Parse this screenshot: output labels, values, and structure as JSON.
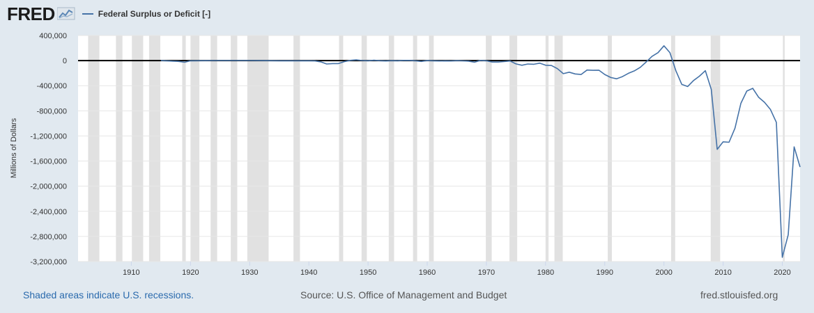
{
  "header": {
    "logo_text": "FRED",
    "logo_icon": "chart-line-icon",
    "legend_label": "Federal Surplus or Deficit [-]",
    "series_color": "#4572a7"
  },
  "footer": {
    "recessions_note": "Shaded areas indicate U.S. recessions.",
    "source": "Source: U.S. Office of Management and Budget",
    "site": "fred.stlouisfed.org"
  },
  "chart_data": {
    "type": "line",
    "title": "",
    "xlabel": "",
    "ylabel": "Millions of Dollars",
    "xlim": [
      1901,
      2023
    ],
    "ylim": [
      -3200000,
      400000
    ],
    "yticks": [
      400000,
      0,
      -400000,
      -800000,
      -1200000,
      -1600000,
      -2000000,
      -2400000,
      -2800000,
      -3200000
    ],
    "ytick_labels": [
      "400,000",
      "0",
      "-400,000",
      "-800,000",
      "-1,200,000",
      "-1,600,000",
      "-2,000,000",
      "-2,400,000",
      "-2,800,000",
      "-3,200,000"
    ],
    "xticks": [
      1910,
      1920,
      1930,
      1940,
      1950,
      1960,
      1970,
      1980,
      1990,
      2000,
      2010,
      2020
    ],
    "xtick_labels": [
      "1910",
      "1920",
      "1930",
      "1940",
      "1950",
      "1960",
      "1970",
      "1980",
      "1990",
      "2000",
      "2010",
      "2020"
    ],
    "grid": "horizontal",
    "zero_line": true,
    "recession_color": "#e1e1e1",
    "recessions": [
      [
        1902.7,
        1904.6
      ],
      [
        1907.4,
        1908.5
      ],
      [
        1910.1,
        1912.0
      ],
      [
        1913.0,
        1914.9
      ],
      [
        1918.6,
        1919.2
      ],
      [
        1920.0,
        1921.5
      ],
      [
        1923.4,
        1924.5
      ],
      [
        1926.8,
        1927.9
      ],
      [
        1929.6,
        1933.2
      ],
      [
        1937.4,
        1938.5
      ],
      [
        1945.1,
        1945.8
      ],
      [
        1948.9,
        1949.8
      ],
      [
        1953.5,
        1954.4
      ],
      [
        1957.6,
        1958.3
      ],
      [
        1960.3,
        1961.1
      ],
      [
        1969.9,
        1970.9
      ],
      [
        1973.9,
        1975.2
      ],
      [
        1980.0,
        1980.5
      ],
      [
        1981.5,
        1982.9
      ],
      [
        1990.5,
        1991.2
      ],
      [
        2001.2,
        2001.9
      ],
      [
        2007.9,
        2009.5
      ],
      [
        2020.1,
        2020.4
      ]
    ],
    "series": [
      {
        "name": "Federal Surplus or Deficit [-]",
        "color": "#4572a7",
        "x": [
          1915,
          1917,
          1918,
          1919,
          1920,
          1925,
          1930,
          1935,
          1940,
          1941,
          1942,
          1943,
          1944,
          1945,
          1946,
          1947,
          1948,
          1949,
          1950,
          1951,
          1952,
          1953,
          1954,
          1955,
          1956,
          1957,
          1958,
          1959,
          1960,
          1961,
          1962,
          1963,
          1964,
          1965,
          1966,
          1967,
          1968,
          1969,
          1970,
          1971,
          1972,
          1973,
          1974,
          1975,
          1976,
          1977,
          1978,
          1979,
          1980,
          1981,
          1982,
          1983,
          1984,
          1985,
          1986,
          1987,
          1988,
          1989,
          1990,
          1991,
          1992,
          1993,
          1994,
          1995,
          1996,
          1997,
          1998,
          1999,
          2000,
          2001,
          2002,
          2003,
          2004,
          2005,
          2006,
          2007,
          2008,
          2009,
          2010,
          2011,
          2012,
          2013,
          2014,
          2015,
          2016,
          2017,
          2018,
          2019,
          2020,
          2021,
          2022,
          2023
        ],
        "y": [
          0,
          -9000,
          -13000,
          -27000,
          -3000,
          1000,
          700,
          -3000,
          -3000,
          -5000,
          -20000,
          -54000,
          -47000,
          -47000,
          -16000,
          4000,
          12000,
          1000,
          -3000,
          6000,
          -2000,
          -7000,
          -1000,
          -3000,
          4000,
          3000,
          -3000,
          -13000,
          0,
          -3000,
          -7000,
          -5000,
          -6000,
          -1000,
          -4000,
          -9000,
          -25000,
          3000,
          -3000,
          -23000,
          -23000,
          -15000,
          -6000,
          -53000,
          -74000,
          -54000,
          -59000,
          -41000,
          -74000,
          -79000,
          -128000,
          -208000,
          -185000,
          -212000,
          -221000,
          -150000,
          -155000,
          -153000,
          -221000,
          -269000,
          -290000,
          -255000,
          -203000,
          -164000,
          -107000,
          -22000,
          69000,
          126000,
          236000,
          128000,
          -158000,
          -378000,
          -413000,
          -318000,
          -248000,
          -161000,
          -459000,
          -1413000,
          -1294000,
          -1300000,
          -1077000,
          -680000,
          -485000,
          -442000,
          -585000,
          -665000,
          -779000,
          -984000,
          -3132000,
          -2775000,
          -1375000,
          -1695000
        ]
      }
    ]
  }
}
